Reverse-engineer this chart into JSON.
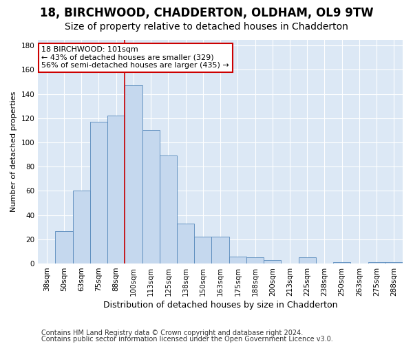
{
  "title1": "18, BIRCHWOOD, CHADDERTON, OLDHAM, OL9 9TW",
  "title2": "Size of property relative to detached houses in Chadderton",
  "xlabel": "Distribution of detached houses by size in Chadderton",
  "ylabel": "Number of detached properties",
  "categories": [
    "38sqm",
    "50sqm",
    "63sqm",
    "75sqm",
    "88sqm",
    "100sqm",
    "113sqm",
    "125sqm",
    "138sqm",
    "150sqm",
    "163sqm",
    "175sqm",
    "188sqm",
    "200sqm",
    "213sqm",
    "225sqm",
    "238sqm",
    "250sqm",
    "263sqm",
    "275sqm",
    "288sqm"
  ],
  "values": [
    0,
    27,
    60,
    117,
    122,
    147,
    110,
    89,
    33,
    22,
    22,
    6,
    5,
    3,
    0,
    5,
    0,
    1,
    0,
    1,
    1
  ],
  "bar_color": "#c5d8ee",
  "bar_edge_color": "#5588bb",
  "vline_index": 5,
  "property_label": "18 BIRCHWOOD: 101sqm",
  "annotation_line1": "← 43% of detached houses are smaller (329)",
  "annotation_line2": "56% of semi-detached houses are larger (435) →",
  "annotation_box_color": "#ffffff",
  "annotation_border_color": "#cc0000",
  "vline_color": "#cc0000",
  "ylim": [
    0,
    185
  ],
  "yticks": [
    0,
    20,
    40,
    60,
    80,
    100,
    120,
    140,
    160,
    180
  ],
  "footer1": "Contains HM Land Registry data © Crown copyright and database right 2024.",
  "footer2": "Contains public sector information licensed under the Open Government Licence v3.0.",
  "plot_bg_color": "#dce8f5",
  "fig_bg_color": "#ffffff",
  "title1_fontsize": 12,
  "title2_fontsize": 10,
  "xlabel_fontsize": 9,
  "ylabel_fontsize": 8,
  "footer_fontsize": 7,
  "annotation_fontsize": 8,
  "tick_fontsize": 7.5
}
